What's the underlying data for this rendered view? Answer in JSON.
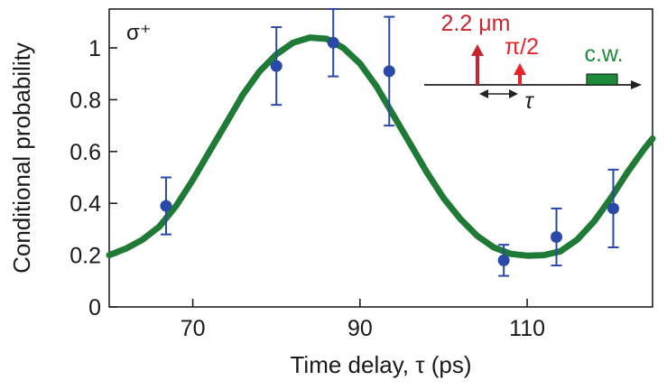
{
  "chart_data": {
    "type": "scatter",
    "panel_label": "σ⁺",
    "xlabel": "Time delay, τ (ps)",
    "ylabel": "Conditional probability",
    "xlim": [
      60,
      125
    ],
    "ylim": [
      0,
      1.15
    ],
    "xticks": [
      70,
      90,
      110
    ],
    "yticks": [
      0,
      0.2,
      0.4,
      0.6,
      0.8,
      1
    ],
    "ytick_labels": [
      "0",
      "0.2",
      "0.4",
      "0.6",
      "0.8",
      "1"
    ],
    "grid": false,
    "series": [
      {
        "color": "#2a48a8",
        "x": [
          66.8,
          80,
          86.8,
          93.5,
          107.2,
          113.5,
          120.3
        ],
        "y": [
          0.39,
          0.93,
          1.02,
          0.91,
          0.18,
          0.27,
          0.38
        ],
        "err_low": [
          0.11,
          0.15,
          0.13,
          0.21,
          0.06,
          0.11,
          0.15
        ],
        "err_high": [
          0.11,
          0.15,
          0.13,
          0.21,
          0.06,
          0.11,
          0.15
        ]
      }
    ],
    "fit": {
      "color": "#1e7a34",
      "x": [
        60,
        62,
        64,
        66,
        68,
        70,
        72,
        74,
        76,
        78,
        80,
        82,
        84,
        86,
        88,
        90,
        92,
        94,
        96,
        98,
        100,
        102,
        104,
        106,
        108,
        110,
        112,
        114,
        116,
        118,
        120,
        122,
        124,
        125
      ],
      "y": [
        0.2,
        0.225,
        0.26,
        0.31,
        0.39,
        0.49,
        0.6,
        0.71,
        0.82,
        0.91,
        0.975,
        1.02,
        1.04,
        1.035,
        1.0,
        0.94,
        0.85,
        0.74,
        0.63,
        0.52,
        0.42,
        0.34,
        0.275,
        0.23,
        0.205,
        0.198,
        0.2,
        0.215,
        0.26,
        0.33,
        0.42,
        0.52,
        0.61,
        0.65
      ]
    },
    "inset": {
      "pulse1_label": "2.2 μm",
      "pulse1_color": "#c8262c",
      "pulse2_label": "π/2",
      "pulse2_color": "#e8242a",
      "cw_label": "c.w.",
      "cw_color": "#1e8a3a",
      "delay_label": "τ"
    }
  }
}
